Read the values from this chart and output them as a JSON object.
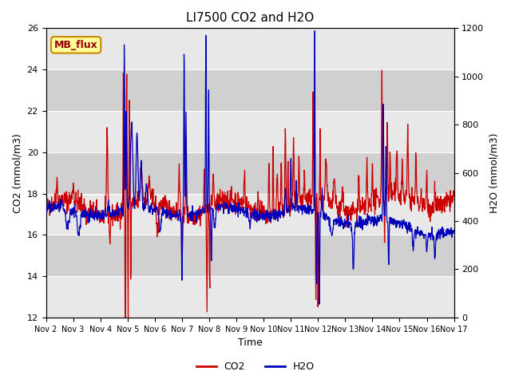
{
  "title": "LI7500 CO2 and H2O",
  "xlabel": "Time",
  "ylabel_left": "CO2 (mmol/m3)",
  "ylabel_right": "H2O (mmol/m3)",
  "ylim_left": [
    12,
    26
  ],
  "ylim_right": [
    0,
    1200
  ],
  "yticks_left": [
    12,
    14,
    16,
    18,
    20,
    22,
    24,
    26
  ],
  "yticks_right": [
    0,
    200,
    400,
    600,
    800,
    1000,
    1200
  ],
  "date_start": 2,
  "date_end": 17,
  "co2_color": "#cc0000",
  "h2o_color": "#0000bb",
  "plot_bg_color": "#d8d8d8",
  "band_color_light": "#e8e8e8",
  "band_color_dark": "#d0d0d0",
  "grid_color": "#ffffff",
  "annotation_text": "MB_flux",
  "annotation_bg": "#ffff99",
  "annotation_border": "#cc8800",
  "legend_co2": "CO2",
  "legend_h2o": "H2O",
  "title_fontsize": 11,
  "axis_fontsize": 9,
  "tick_fontsize": 8,
  "linewidth": 0.9
}
